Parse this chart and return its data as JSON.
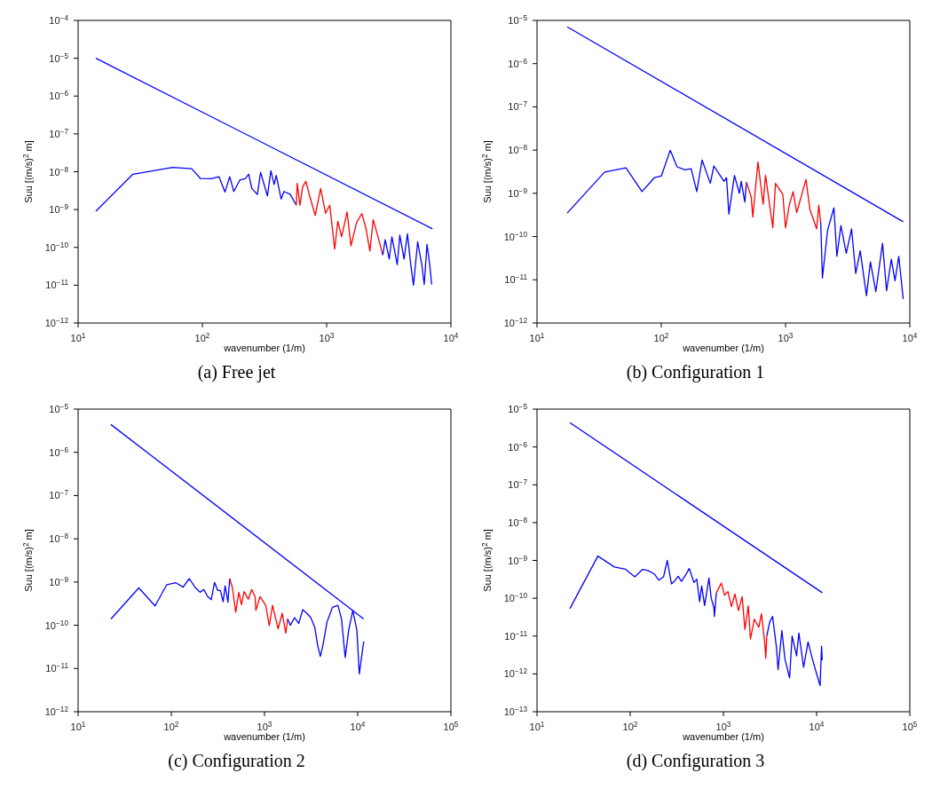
{
  "chart_data": [
    {
      "type": "line",
      "title": "(a) Free jet",
      "xlabel": "wavenumber (1/m)",
      "ylabel": "Suu [(m/s)$^{2}$ m]",
      "log": "xy",
      "xlim": [
        10,
        10000
      ],
      "ylim": [
        1e-12,
        0.0001
      ],
      "xticks": [
        {
          "value": 10,
          "label": "10$^{1}$"
        },
        {
          "value": 100,
          "label": "10$^{2}$"
        },
        {
          "value": 1000,
          "label": "10$^{3}$"
        },
        {
          "value": 10000,
          "label": "10$^{4}$"
        }
      ],
      "yticks": [
        {
          "value": 1e-12,
          "label": "10$^{−12}$"
        },
        {
          "value": 1e-11,
          "label": "10$^{−11}$"
        },
        {
          "value": 1e-10,
          "label": "10$^{−10}$"
        },
        {
          "value": 1e-09,
          "label": "10$^{−9}$"
        },
        {
          "value": 1e-08,
          "label": "10$^{−8}$"
        },
        {
          "value": 1e-07,
          "label": "10$^{−7}$"
        },
        {
          "value": 1e-06,
          "label": "10$^{−6}$"
        },
        {
          "value": 1e-05,
          "label": "10$^{−5}$"
        },
        {
          "value": 0.0001,
          "label": "10$^{−4}$"
        }
      ],
      "series": [
        {
          "color": "#0000ff",
          "x": [
            13.9,
            7100
          ],
          "values": [
            1e-05,
            3.1e-10
          ]
        },
        {
          "color": "#0000ff",
          "x": [
            13.9,
            27.6,
            57.7,
            82,
            96.7,
            118,
            136,
            152,
            166,
            179,
            200,
            221,
            236,
            250,
            277,
            294,
            334,
            356,
            378,
            393,
            430,
            454,
            510,
            570
          ],
          "values": [
            9e-10,
            8.6e-09,
            1.3e-08,
            1.2e-08,
            6.6e-09,
            6.5e-09,
            7.4e-09,
            2.9e-09,
            7.4e-09,
            3e-09,
            6e-09,
            6.5e-09,
            8.6e-09,
            3.6e-09,
            2.5e-09,
            9.6e-09,
            2.3e-09,
            1.06e-08,
            4.6e-09,
            8e-09,
            1.9e-09,
            3e-09,
            2.5e-09,
            1.3e-09
          ]
        },
        {
          "color": "#ff0000",
          "x": [
            570,
            580,
            610,
            640,
            680,
            730,
            810,
            895,
            980,
            1060,
            1160,
            1230,
            1320,
            1460,
            1570,
            1740,
            1920,
            2070,
            2230,
            2370,
            2590,
            2830
          ],
          "values": [
            1.3e-09,
            4.9e-09,
            1.3e-09,
            3.9e-09,
            5.6e-09,
            2.3e-09,
            7e-10,
            3.6e-09,
            8e-10,
            1.3e-09,
            9e-11,
            4.9e-10,
            1.9e-10,
            8.6e-10,
            1.1e-10,
            4.5e-10,
            7.8e-10,
            3.2e-10,
            8e-11,
            5.4e-10,
            1.9e-10,
            6.3e-11
          ]
        },
        {
          "color": "#0000ff",
          "x": [
            2830,
            2960,
            3190,
            3350,
            3700,
            3880,
            4200,
            4470,
            4750,
            5000,
            5400,
            5830,
            6100,
            6420,
            6750,
            7000
          ],
          "values": [
            6.3e-11,
            1.6e-10,
            4.9e-11,
            1.9e-10,
            3.5e-11,
            2.1e-10,
            4.9e-11,
            2.3e-10,
            3.5e-11,
            1e-11,
            1.4e-10,
            3.5e-11,
            1.05e-11,
            1.2e-10,
            3.5e-11,
            1.05e-11
          ]
        }
      ]
    },
    {
      "type": "line",
      "title": "(b) Configuration 1",
      "xlabel": "wavenumber (1/m)",
      "ylabel": "Suu [(m/s)$^{2}$ m]",
      "log": "xy",
      "xlim": [
        10,
        10000
      ],
      "ylim": [
        1e-12,
        1e-05
      ],
      "xticks": [
        {
          "value": 10,
          "label": "10$^{1}$"
        },
        {
          "value": 100,
          "label": "10$^{2}$"
        },
        {
          "value": 1000,
          "label": "10$^{3}$"
        },
        {
          "value": 10000,
          "label": "10$^{4}$"
        }
      ],
      "yticks": [
        {
          "value": 1e-12,
          "label": "10$^{−12}$"
        },
        {
          "value": 1e-11,
          "label": "10$^{−11}$"
        },
        {
          "value": 1e-10,
          "label": "10$^{−10}$"
        },
        {
          "value": 1e-09,
          "label": "10$^{−9}$"
        },
        {
          "value": 1e-08,
          "label": "10$^{−8}$"
        },
        {
          "value": 1e-07,
          "label": "10$^{−7}$"
        },
        {
          "value": 1e-06,
          "label": "10$^{−6}$"
        },
        {
          "value": 1e-05,
          "label": "10$^{−5}$"
        }
      ],
      "series": [
        {
          "color": "#0000ff",
          "x": [
            17.5,
            8850
          ],
          "values": [
            7.1e-06,
            2.2e-10
          ]
        },
        {
          "color": "#0000ff",
          "x": [
            17.5,
            35,
            52,
            70,
            88,
            100,
            118,
            134,
            155,
            174,
            193,
            213,
            248,
            265,
            290,
            320,
            335,
            350,
            388,
            425,
            440,
            470,
            485
          ],
          "values": [
            3.5e-10,
            3.1e-09,
            3.9e-09,
            1.1e-09,
            2.3e-09,
            2.5e-09,
            9.9e-09,
            4.1e-09,
            3.5e-09,
            3.7e-09,
            1.1e-09,
            5.9e-09,
            1.7e-09,
            4.3e-09,
            2.9e-09,
            1.9e-09,
            2.3e-09,
            3.3e-10,
            2.6e-09,
            1e-09,
            1.9e-09,
            6.3e-10,
            1.8e-09
          ]
        },
        {
          "color": "#ff0000",
          "x": [
            485,
            530,
            545,
            600,
            660,
            690,
            790,
            830,
            950,
            1000,
            1070,
            1150,
            1230,
            1460,
            1570,
            1780,
            1850,
            1920
          ],
          "values": [
            1.8e-09,
            8.2e-10,
            2.8e-10,
            5.3e-09,
            5.6e-10,
            2.6e-09,
            1.6e-10,
            1.7e-09,
            9.5e-10,
            1.6e-10,
            5.2e-10,
            1.1e-09,
            3.6e-10,
            2.1e-09,
            4.3e-10,
            1.5e-10,
            5.3e-10,
            2.1e-10
          ]
        },
        {
          "color": "#0000ff",
          "x": [
            1920,
            1980,
            2180,
            2450,
            2590,
            2790,
            3080,
            3400,
            3670,
            3990,
            4480,
            4820,
            5330,
            6030,
            6500,
            7100,
            7600,
            8150,
            8850
          ],
          "values": [
            2.1e-10,
            1.1e-11,
            1.4e-10,
            4.6e-10,
            3.5e-11,
            1.8e-10,
            4.1e-11,
            1.5e-10,
            1.4e-11,
            4.7e-11,
            4.3e-12,
            2.6e-11,
            5.3e-12,
            7e-11,
            5.6e-12,
            3e-11,
            9.5e-12,
            3.5e-11,
            3.6e-12
          ]
        }
      ]
    },
    {
      "type": "line",
      "title": "(c) Configuration 2",
      "xlabel": "wavenumber (1/m)",
      "ylabel": "Suu [(m/s)$^{2}$ m]",
      "log": "xy",
      "xlim": [
        10,
        100000
      ],
      "ylim": [
        1e-12,
        1e-05
      ],
      "xticks": [
        {
          "value": 10,
          "label": "10$^{1}$"
        },
        {
          "value": 100,
          "label": "10$^{2}$"
        },
        {
          "value": 1000,
          "label": "10$^{3}$"
        },
        {
          "value": 10000,
          "label": "10$^{4}$"
        },
        {
          "value": 100000,
          "label": "10$^{5}$"
        }
      ],
      "yticks": [
        {
          "value": 1e-12,
          "label": "10$^{−12}$"
        },
        {
          "value": 1e-11,
          "label": "10$^{−11}$"
        },
        {
          "value": 1e-10,
          "label": "10$^{−10}$"
        },
        {
          "value": 1e-09,
          "label": "10$^{−9}$"
        },
        {
          "value": 1e-08,
          "label": "10$^{−8}$"
        },
        {
          "value": 1e-07,
          "label": "10$^{−7}$"
        },
        {
          "value": 1e-06,
          "label": "10$^{−6}$"
        },
        {
          "value": 1e-05,
          "label": "10$^{−5}$"
        }
      ],
      "series": [
        {
          "color": "#0000ff",
          "x": [
            22.5,
            11600
          ],
          "values": [
            4.4e-06,
            1.4e-10
          ]
        },
        {
          "color": "#0000ff",
          "x": [
            22.5,
            44.8,
            66.9,
            89.5,
            112,
            134,
            156,
            180,
            204,
            223,
            246,
            268,
            291,
            314,
            336,
            360,
            378,
            405,
            423
          ],
          "values": [
            1.4e-10,
            7.3e-10,
            2.8e-10,
            8.7e-10,
            9.6e-10,
            7.6e-10,
            1.2e-09,
            7.5e-10,
            5.8e-10,
            6.7e-10,
            4.6e-10,
            3.9e-10,
            9.8e-10,
            6.4e-10,
            6.4e-10,
            3.5e-10,
            8.2e-10,
            3.4e-10,
            1.2e-09
          ]
        },
        {
          "color": "#ff0000",
          "x": [
            423,
            453,
            491,
            530,
            566,
            605,
            670,
            728,
            792,
            808,
            896,
            1030,
            1125,
            1220,
            1320,
            1400,
            1550,
            1690,
            1770
          ],
          "values": [
            1.2e-09,
            7.3e-10,
            2e-10,
            5.8e-10,
            3e-10,
            6e-10,
            4e-10,
            6.7e-10,
            4.6e-10,
            2.2e-10,
            4.6e-10,
            2.9e-10,
            9.9e-11,
            2.9e-10,
            1.4e-10,
            8.3e-11,
            1.9e-10,
            6.6e-11,
            1.4e-10
          ]
        },
        {
          "color": "#0000ff",
          "x": [
            1770,
            1890,
            2100,
            2330,
            2570,
            2840,
            3140,
            3470,
            3710,
            3970,
            4240,
            4690,
            5360,
            6130,
            6700,
            7340,
            8000,
            8860,
            9800,
            10400,
            11600
          ],
          "values": [
            1.4e-10,
            1e-10,
            1.5e-10,
            1.1e-10,
            2.3e-10,
            1.9e-10,
            1.5e-10,
            8.8e-11,
            3.5e-11,
            1.9e-11,
            3.5e-11,
            1.2e-10,
            2.6e-10,
            2.9e-10,
            1.4e-10,
            1.8e-11,
            7.7e-11,
            2.2e-10,
            7.7e-11,
            7.5e-12,
            4.2e-11
          ]
        }
      ]
    },
    {
      "type": "line",
      "title": "(d) Configuration 3",
      "xlabel": "wavenumber (1/m)",
      "ylabel": "Suu [(m/s)$^{2}$ m]",
      "log": "xy",
      "xlim": [
        10,
        100000
      ],
      "ylim": [
        1e-13,
        1e-05
      ],
      "xticks": [
        {
          "value": 10,
          "label": "10$^{1}$"
        },
        {
          "value": 100,
          "label": "10$^{2}$"
        },
        {
          "value": 1000,
          "label": "10$^{3}$"
        },
        {
          "value": 10000,
          "label": "10$^{4}$"
        },
        {
          "value": 100000,
          "label": "10$^{5}$"
        }
      ],
      "yticks": [
        {
          "value": 1e-13,
          "label": "10$^{−13}$"
        },
        {
          "value": 1e-12,
          "label": "10$^{−12}$"
        },
        {
          "value": 1e-11,
          "label": "10$^{−11}$"
        },
        {
          "value": 1e-10,
          "label": "10$^{−10}$"
        },
        {
          "value": 1e-09,
          "label": "10$^{−9}$"
        },
        {
          "value": 1e-08,
          "label": "10$^{−8}$"
        },
        {
          "value": 1e-07,
          "label": "10$^{−7}$"
        },
        {
          "value": 1e-06,
          "label": "10$^{−6}$"
        },
        {
          "value": 1e-05,
          "label": "10$^{−5}$"
        }
      ],
      "series": [
        {
          "color": "#0000ff",
          "x": [
            22.5,
            11500
          ],
          "values": [
            4.4e-06,
            1.4e-10
          ]
        },
        {
          "color": "#0000ff",
          "x": [
            22.5,
            45,
            67.6,
            88.5,
            112,
            136,
            155,
            181,
            203,
            228,
            250,
            277,
            301,
            327,
            355,
            390,
            430,
            484,
            518,
            556,
            585,
            628,
            700,
            740,
            790,
            800,
            840
          ],
          "values": [
            5.3e-11,
            1.3e-09,
            6.7e-10,
            5.9e-10,
            3.7e-10,
            5.8e-10,
            5.4e-10,
            4.4e-10,
            3e-10,
            3.7e-10,
            1e-09,
            2.4e-10,
            2.9e-10,
            3.8e-10,
            2.8e-10,
            4e-10,
            6.1e-10,
            2.6e-10,
            3.2e-10,
            8.1e-11,
            2.1e-10,
            6.4e-11,
            3.4e-10,
            1e-10,
            5.7e-11,
            3.3e-11,
            1.4e-10
          ]
        },
        {
          "color": "#ff0000",
          "x": [
            840,
            950,
            1030,
            1120,
            1220,
            1330,
            1450,
            1590,
            1700,
            1850,
            1950,
            2150,
            2400,
            2560,
            2770,
            2850,
            2920
          ],
          "values": [
            1.4e-10,
            2.5e-10,
            1.2e-10,
            1.5e-10,
            6e-11,
            1.3e-10,
            4.7e-11,
            1.1e-10,
            1.5e-11,
            6.3e-11,
            8.4e-12,
            2.8e-11,
            1.7e-11,
            3.9e-11,
            7e-12,
            2.6e-12,
            1e-11
          ]
        },
        {
          "color": "#0000ff",
          "x": [
            2920,
            3130,
            3370,
            3710,
            3860,
            4240,
            4570,
            5130,
            5460,
            6100,
            6450,
            7250,
            8100,
            9000,
            9800,
            10900,
            11300,
            11500
          ],
          "values": [
            1e-11,
            2.3e-11,
            3.3e-11,
            5e-12,
            1.3e-12,
            1.4e-11,
            2.5e-12,
            7.9e-13,
            1e-11,
            3e-12,
            1.2e-11,
            1.5e-12,
            7e-12,
            2.5e-12,
            1.2e-12,
            4.9e-13,
            5.4e-12,
            2.3e-12
          ]
        }
      ]
    }
  ]
}
